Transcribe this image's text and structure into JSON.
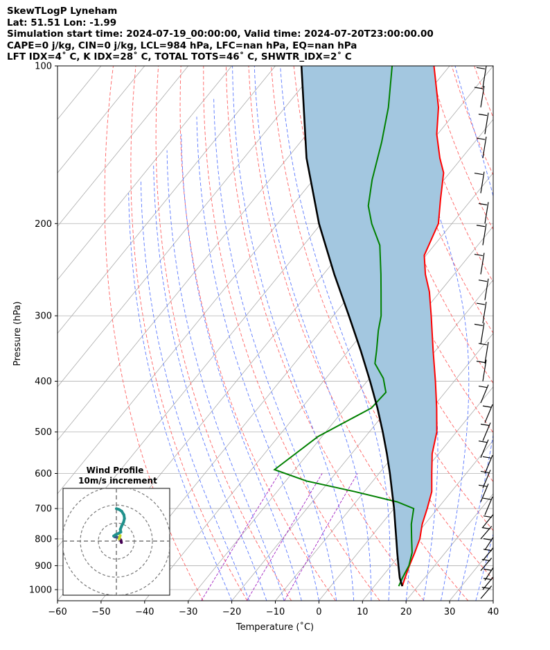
{
  "header": {
    "line1": "SkewTLogP Lyneham",
    "line2": "Lat: 51.51   Lon: -1.99",
    "line3": "Simulation start time: 2024-07-19_00:00:00, Valid time: 2024-07-20T23:00:00.00",
    "line4": "CAPE=0 j/kg, CIN=0 j/kg, LCL=984 hPa, LFC=nan hPa, EQ=nan hPa",
    "line5": "LFT IDX=4˚ C, K IDX=28˚ C, TOTAL TOTS=46˚ C, SHWTR_IDX=2˚ C"
  },
  "colors": {
    "temperature": "#ff0000",
    "dewpoint": "#008000",
    "parcel": "#000000",
    "cape_fill": "#a3c7e0",
    "dry_adiabat": "#ff6060",
    "moist_adiabat": "#5a78ff",
    "mixing_ratio": "#a020c0",
    "isotherm": "#aaaaaa"
  },
  "chart_data": {
    "type": "skewt",
    "xlabel": "Temperature (˚C)",
    "ylabel": "Pressure (hPa)",
    "xlim": [
      -60,
      40
    ],
    "ylim": [
      1050,
      100
    ],
    "log_y": true,
    "grid": true,
    "x_ticks": [
      "−60",
      "−50",
      "−40",
      "−30",
      "−20",
      "−10",
      "0",
      "10",
      "20",
      "30",
      "40"
    ],
    "y_ticks": [
      "100",
      "200",
      "300",
      "400",
      "500",
      "600",
      "700",
      "800",
      "900",
      "1000"
    ],
    "temperature_profile": [
      {
        "p": 985,
        "t": 16.4
      },
      {
        "p": 950,
        "t": 15.5
      },
      {
        "p": 900,
        "t": 14.2
      },
      {
        "p": 850,
        "t": 13.0
      },
      {
        "p": 800,
        "t": 11.6
      },
      {
        "p": 750,
        "t": 9.4
      },
      {
        "p": 700,
        "t": 7.6
      },
      {
        "p": 650,
        "t": 5.5
      },
      {
        "p": 600,
        "t": 2.1
      },
      {
        "p": 550,
        "t": -1.5
      },
      {
        "p": 500,
        "t": -4.5
      },
      {
        "p": 450,
        "t": -9.0
      },
      {
        "p": 400,
        "t": -14.3
      },
      {
        "p": 350,
        "t": -20.5
      },
      {
        "p": 300,
        "t": -27.5
      },
      {
        "p": 270,
        "t": -32.4
      },
      {
        "p": 250,
        "t": -36.6
      },
      {
        "p": 230,
        "t": -40.4
      },
      {
        "p": 200,
        "t": -43.1
      },
      {
        "p": 180,
        "t": -47.1
      },
      {
        "p": 160,
        "t": -51.4
      },
      {
        "p": 150,
        "t": -55.0
      },
      {
        "p": 135,
        "t": -60.2
      },
      {
        "p": 120,
        "t": -64.8
      },
      {
        "p": 100,
        "t": -73.6
      }
    ],
    "dewpoint_profile": [
      {
        "p": 985,
        "td": 15.6
      },
      {
        "p": 950,
        "td": 14.9
      },
      {
        "p": 900,
        "td": 14.1
      },
      {
        "p": 850,
        "td": 12.4
      },
      {
        "p": 800,
        "td": 9.7
      },
      {
        "p": 750,
        "td": 6.9
      },
      {
        "p": 700,
        "td": 4.5
      },
      {
        "p": 680,
        "td": -0.5
      },
      {
        "p": 650,
        "td": -12.1
      },
      {
        "p": 620,
        "td": -25.3
      },
      {
        "p": 590,
        "td": -34.7
      },
      {
        "p": 510,
        "td": -30.9
      },
      {
        "p": 450,
        "td": -24.0
      },
      {
        "p": 420,
        "td": -23.6
      },
      {
        "p": 395,
        "td": -26.8
      },
      {
        "p": 370,
        "td": -31.5
      },
      {
        "p": 350,
        "td": -33.5
      },
      {
        "p": 320,
        "td": -36.9
      },
      {
        "p": 300,
        "td": -39.0
      },
      {
        "p": 270,
        "td": -43.5
      },
      {
        "p": 250,
        "td": -46.8
      },
      {
        "p": 220,
        "td": -52.5
      },
      {
        "p": 200,
        "td": -58.4
      },
      {
        "p": 185,
        "td": -62.5
      },
      {
        "p": 165,
        "td": -66.5
      },
      {
        "p": 140,
        "td": -71.3
      },
      {
        "p": 120,
        "td": -76.3
      },
      {
        "p": 100,
        "td": -83.2
      }
    ],
    "parcel_profile": [
      {
        "p": 985,
        "t": 16.4
      },
      {
        "p": 950,
        "t": 14.3
      },
      {
        "p": 900,
        "t": 11.7
      },
      {
        "p": 850,
        "t": 9.0
      },
      {
        "p": 800,
        "t": 6.2
      },
      {
        "p": 750,
        "t": 3.2
      },
      {
        "p": 700,
        "t": 0.0
      },
      {
        "p": 650,
        "t": -3.6
      },
      {
        "p": 600,
        "t": -7.5
      },
      {
        "p": 550,
        "t": -11.9
      },
      {
        "p": 500,
        "t": -16.9
      },
      {
        "p": 450,
        "t": -22.6
      },
      {
        "p": 400,
        "t": -29.3
      },
      {
        "p": 350,
        "t": -37.1
      },
      {
        "p": 300,
        "t": -46.4
      },
      {
        "p": 250,
        "t": -57.5
      },
      {
        "p": 200,
        "t": -70.5
      },
      {
        "p": 150,
        "t": -85.6
      },
      {
        "p": 100,
        "t": -104.0
      }
    ],
    "wind_barb_pressures": [
      1040,
      1000,
      960,
      920,
      880,
      840,
      800,
      760,
      720,
      680,
      640,
      600,
      560,
      520,
      480,
      440,
      400,
      370,
      340,
      310,
      280,
      250,
      220,
      200,
      175,
      150,
      135,
      120,
      110
    ],
    "hodograph": {
      "title": "Wind Profile",
      "subtitle": "10m/s increment",
      "rings_ms": [
        10,
        20,
        30
      ],
      "points": [
        {
          "u": 2.8,
          "v": -0.8
        },
        {
          "u": 2.5,
          "v": 0.5
        },
        {
          "u": 1.5,
          "v": 1.8
        },
        {
          "u": 0.2,
          "v": 2.2
        },
        {
          "u": -1.0,
          "v": 2.4
        },
        {
          "u": -1.5,
          "v": 2.8
        },
        {
          "u": -0.5,
          "v": 3.5
        },
        {
          "u": 1.0,
          "v": 4.2
        },
        {
          "u": 2.5,
          "v": 5.0
        },
        {
          "u": 2.2,
          "v": 6.5
        },
        {
          "u": 3.0,
          "v": 8.5
        },
        {
          "u": 4.0,
          "v": 10.5
        },
        {
          "u": 4.5,
          "v": 12.5
        },
        {
          "u": 4.2,
          "v": 14.5
        },
        {
          "u": 3.0,
          "v": 16.5
        },
        {
          "u": 1.5,
          "v": 17.5
        },
        {
          "u": 0.0,
          "v": 18.0
        }
      ]
    }
  }
}
